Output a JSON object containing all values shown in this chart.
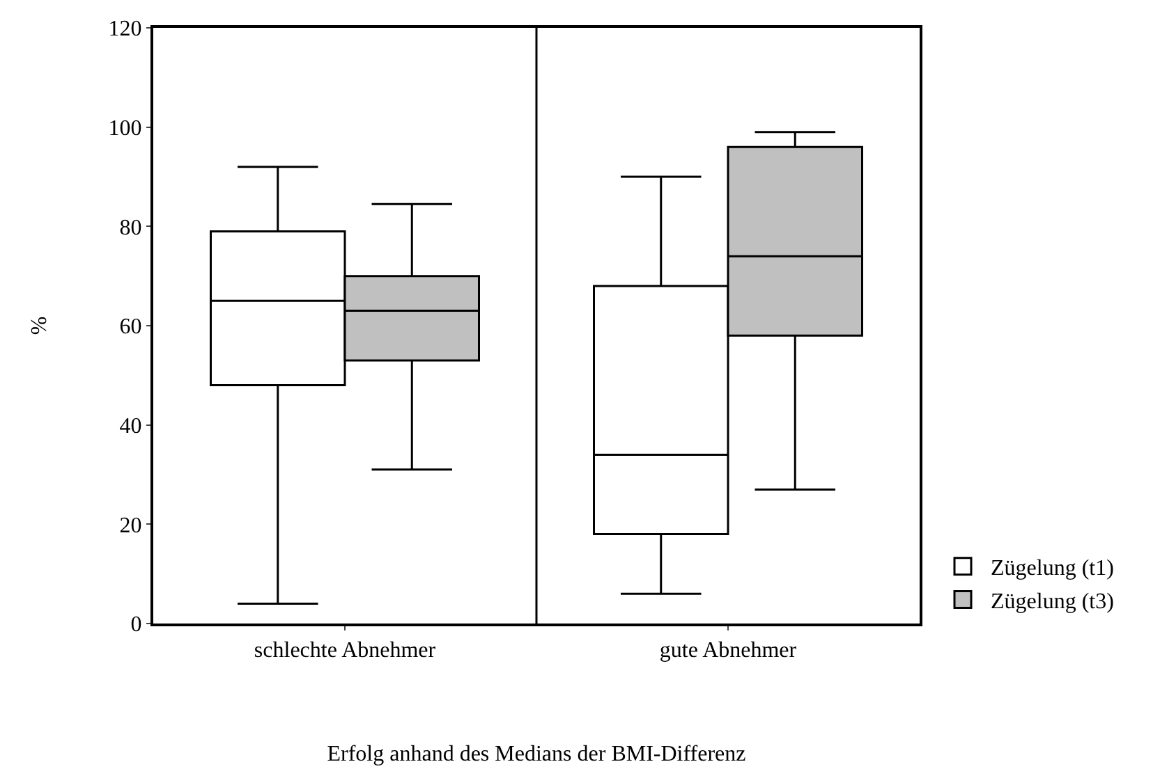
{
  "chart_data": {
    "type": "box",
    "xlabel": "Erfolg anhand des Medians der BMI-Differenz",
    "ylabel": "%",
    "categories": [
      "schlechte Abnehmer",
      "gute Abnehmer"
    ],
    "series": [
      {
        "name": "Zügelung (t1)",
        "color": "#ffffff",
        "boxes": [
          {
            "low": 4,
            "q1": 48,
            "median": 65,
            "q3": 79,
            "high": 92
          },
          {
            "low": 6,
            "q1": 18,
            "median": 34,
            "q3": 68,
            "high": 90
          }
        ]
      },
      {
        "name": "Zügelung (t3)",
        "color": "#c0c0c0",
        "boxes": [
          {
            "low": 31,
            "q1": 53,
            "median": 63,
            "q3": 70,
            "high": 84.5
          },
          {
            "low": 27,
            "q1": 58,
            "median": 74,
            "q3": 96,
            "high": 99
          }
        ]
      }
    ],
    "ylim": [
      0,
      120
    ],
    "yticks": [
      0,
      20,
      40,
      60,
      80,
      100,
      120
    ],
    "legend": "bottom right"
  }
}
